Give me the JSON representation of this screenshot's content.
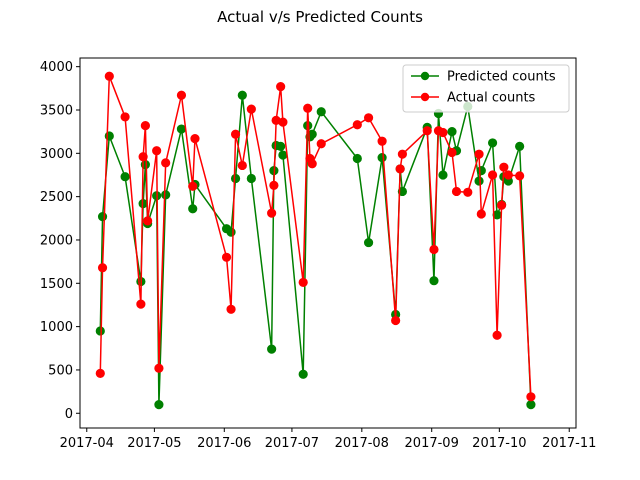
{
  "chart_data": {
    "type": "line",
    "title": "Actual v/s Predicted Counts",
    "xlabel": "",
    "ylabel": "",
    "x_axis": {
      "type": "date",
      "range": [
        "2017-03-29",
        "2017-11-04"
      ],
      "tick_dates": [
        "2017-04-01",
        "2017-05-01",
        "2017-06-01",
        "2017-07-01",
        "2017-08-01",
        "2017-09-01",
        "2017-10-01",
        "2017-11-01"
      ],
      "tick_labels": [
        "2017-04",
        "2017-05",
        "2017-06",
        "2017-07",
        "2017-08",
        "2017-09",
        "2017-10",
        "2017-11"
      ]
    },
    "y_axis": {
      "range": [
        -170,
        4100
      ],
      "ticks": [
        0,
        500,
        1000,
        1500,
        2000,
        2500,
        3000,
        3500,
        4000
      ],
      "tick_labels": [
        "0",
        "500",
        "1000",
        "1500",
        "2000",
        "2500",
        "3000",
        "3500",
        "4000"
      ]
    },
    "grid": false,
    "legend_position": "top-right",
    "series": [
      {
        "name": "Predicted counts",
        "color": "#008000",
        "points": [
          {
            "x": "2017-04-07",
            "y": 950
          },
          {
            "x": "2017-04-08",
            "y": 2270
          },
          {
            "x": "2017-04-11",
            "y": 3200
          },
          {
            "x": "2017-04-18",
            "y": 2730
          },
          {
            "x": "2017-04-25",
            "y": 1520
          },
          {
            "x": "2017-04-26",
            "y": 2420
          },
          {
            "x": "2017-04-27",
            "y": 2870
          },
          {
            "x": "2017-04-28",
            "y": 2190
          },
          {
            "x": "2017-05-02",
            "y": 2510
          },
          {
            "x": "2017-05-03",
            "y": 100
          },
          {
            "x": "2017-05-06",
            "y": 2520
          },
          {
            "x": "2017-05-13",
            "y": 3280
          },
          {
            "x": "2017-05-18",
            "y": 2360
          },
          {
            "x": "2017-05-19",
            "y": 2640
          },
          {
            "x": "2017-06-02",
            "y": 2130
          },
          {
            "x": "2017-06-04",
            "y": 2090
          },
          {
            "x": "2017-06-06",
            "y": 2710
          },
          {
            "x": "2017-06-09",
            "y": 3670
          },
          {
            "x": "2017-06-13",
            "y": 2710
          },
          {
            "x": "2017-06-22",
            "y": 740
          },
          {
            "x": "2017-06-23",
            "y": 2800
          },
          {
            "x": "2017-06-24",
            "y": 3090
          },
          {
            "x": "2017-06-26",
            "y": 3080
          },
          {
            "x": "2017-06-27",
            "y": 2980
          },
          {
            "x": "2017-07-06",
            "y": 450
          },
          {
            "x": "2017-07-08",
            "y": 3320
          },
          {
            "x": "2017-07-09",
            "y": 3190
          },
          {
            "x": "2017-07-10",
            "y": 3220
          },
          {
            "x": "2017-07-14",
            "y": 3480
          },
          {
            "x": "2017-07-30",
            "y": 2940
          },
          {
            "x": "2017-08-04",
            "y": 1970
          },
          {
            "x": "2017-08-10",
            "y": 2950
          },
          {
            "x": "2017-08-16",
            "y": 1140
          },
          {
            "x": "2017-08-18",
            "y": 2820
          },
          {
            "x": "2017-08-19",
            "y": 2560
          },
          {
            "x": "2017-08-30",
            "y": 3300
          },
          {
            "x": "2017-09-02",
            "y": 1530
          },
          {
            "x": "2017-09-04",
            "y": 3460
          },
          {
            "x": "2017-09-06",
            "y": 2750
          },
          {
            "x": "2017-09-10",
            "y": 3250
          },
          {
            "x": "2017-09-12",
            "y": 3030
          },
          {
            "x": "2017-09-17",
            "y": 3540
          },
          {
            "x": "2017-09-22",
            "y": 2680
          },
          {
            "x": "2017-09-23",
            "y": 2800
          },
          {
            "x": "2017-09-28",
            "y": 3120
          },
          {
            "x": "2017-09-30",
            "y": 2290
          },
          {
            "x": "2017-10-02",
            "y": 2410
          },
          {
            "x": "2017-10-03",
            "y": 2730
          },
          {
            "x": "2017-10-05",
            "y": 2680
          },
          {
            "x": "2017-10-10",
            "y": 3080
          },
          {
            "x": "2017-10-15",
            "y": 100
          }
        ]
      },
      {
        "name": "Actual counts",
        "color": "#ff0000",
        "points": [
          {
            "x": "2017-04-07",
            "y": 460
          },
          {
            "x": "2017-04-08",
            "y": 1680
          },
          {
            "x": "2017-04-11",
            "y": 3890
          },
          {
            "x": "2017-04-18",
            "y": 3420
          },
          {
            "x": "2017-04-25",
            "y": 1260
          },
          {
            "x": "2017-04-26",
            "y": 2960
          },
          {
            "x": "2017-04-27",
            "y": 3320
          },
          {
            "x": "2017-04-28",
            "y": 2220
          },
          {
            "x": "2017-05-02",
            "y": 3030
          },
          {
            "x": "2017-05-03",
            "y": 520
          },
          {
            "x": "2017-05-06",
            "y": 2890
          },
          {
            "x": "2017-05-13",
            "y": 3670
          },
          {
            "x": "2017-05-18",
            "y": 2620
          },
          {
            "x": "2017-05-19",
            "y": 3170
          },
          {
            "x": "2017-06-02",
            "y": 1800
          },
          {
            "x": "2017-06-04",
            "y": 1200
          },
          {
            "x": "2017-06-06",
            "y": 3220
          },
          {
            "x": "2017-06-09",
            "y": 2860
          },
          {
            "x": "2017-06-13",
            "y": 3510
          },
          {
            "x": "2017-06-22",
            "y": 2310
          },
          {
            "x": "2017-06-23",
            "y": 2630
          },
          {
            "x": "2017-06-24",
            "y": 3380
          },
          {
            "x": "2017-06-26",
            "y": 3770
          },
          {
            "x": "2017-06-27",
            "y": 3360
          },
          {
            "x": "2017-07-06",
            "y": 1510
          },
          {
            "x": "2017-07-08",
            "y": 3520
          },
          {
            "x": "2017-07-09",
            "y": 2940
          },
          {
            "x": "2017-07-10",
            "y": 2880
          },
          {
            "x": "2017-07-14",
            "y": 3110
          },
          {
            "x": "2017-07-30",
            "y": 3330
          },
          {
            "x": "2017-08-04",
            "y": 3410
          },
          {
            "x": "2017-08-10",
            "y": 3140
          },
          {
            "x": "2017-08-16",
            "y": 1070
          },
          {
            "x": "2017-08-18",
            "y": 2820
          },
          {
            "x": "2017-08-19",
            "y": 2990
          },
          {
            "x": "2017-08-30",
            "y": 3260
          },
          {
            "x": "2017-09-02",
            "y": 1890
          },
          {
            "x": "2017-09-04",
            "y": 3260
          },
          {
            "x": "2017-09-06",
            "y": 3240
          },
          {
            "x": "2017-09-10",
            "y": 3010
          },
          {
            "x": "2017-09-12",
            "y": 2560
          },
          {
            "x": "2017-09-17",
            "y": 2550
          },
          {
            "x": "2017-09-22",
            "y": 2990
          },
          {
            "x": "2017-09-23",
            "y": 2300
          },
          {
            "x": "2017-09-28",
            "y": 2750
          },
          {
            "x": "2017-09-30",
            "y": 900
          },
          {
            "x": "2017-10-02",
            "y": 2400
          },
          {
            "x": "2017-10-03",
            "y": 2840
          },
          {
            "x": "2017-10-05",
            "y": 2750
          },
          {
            "x": "2017-10-10",
            "y": 2740
          },
          {
            "x": "2017-10-15",
            "y": 190
          }
        ]
      }
    ]
  }
}
